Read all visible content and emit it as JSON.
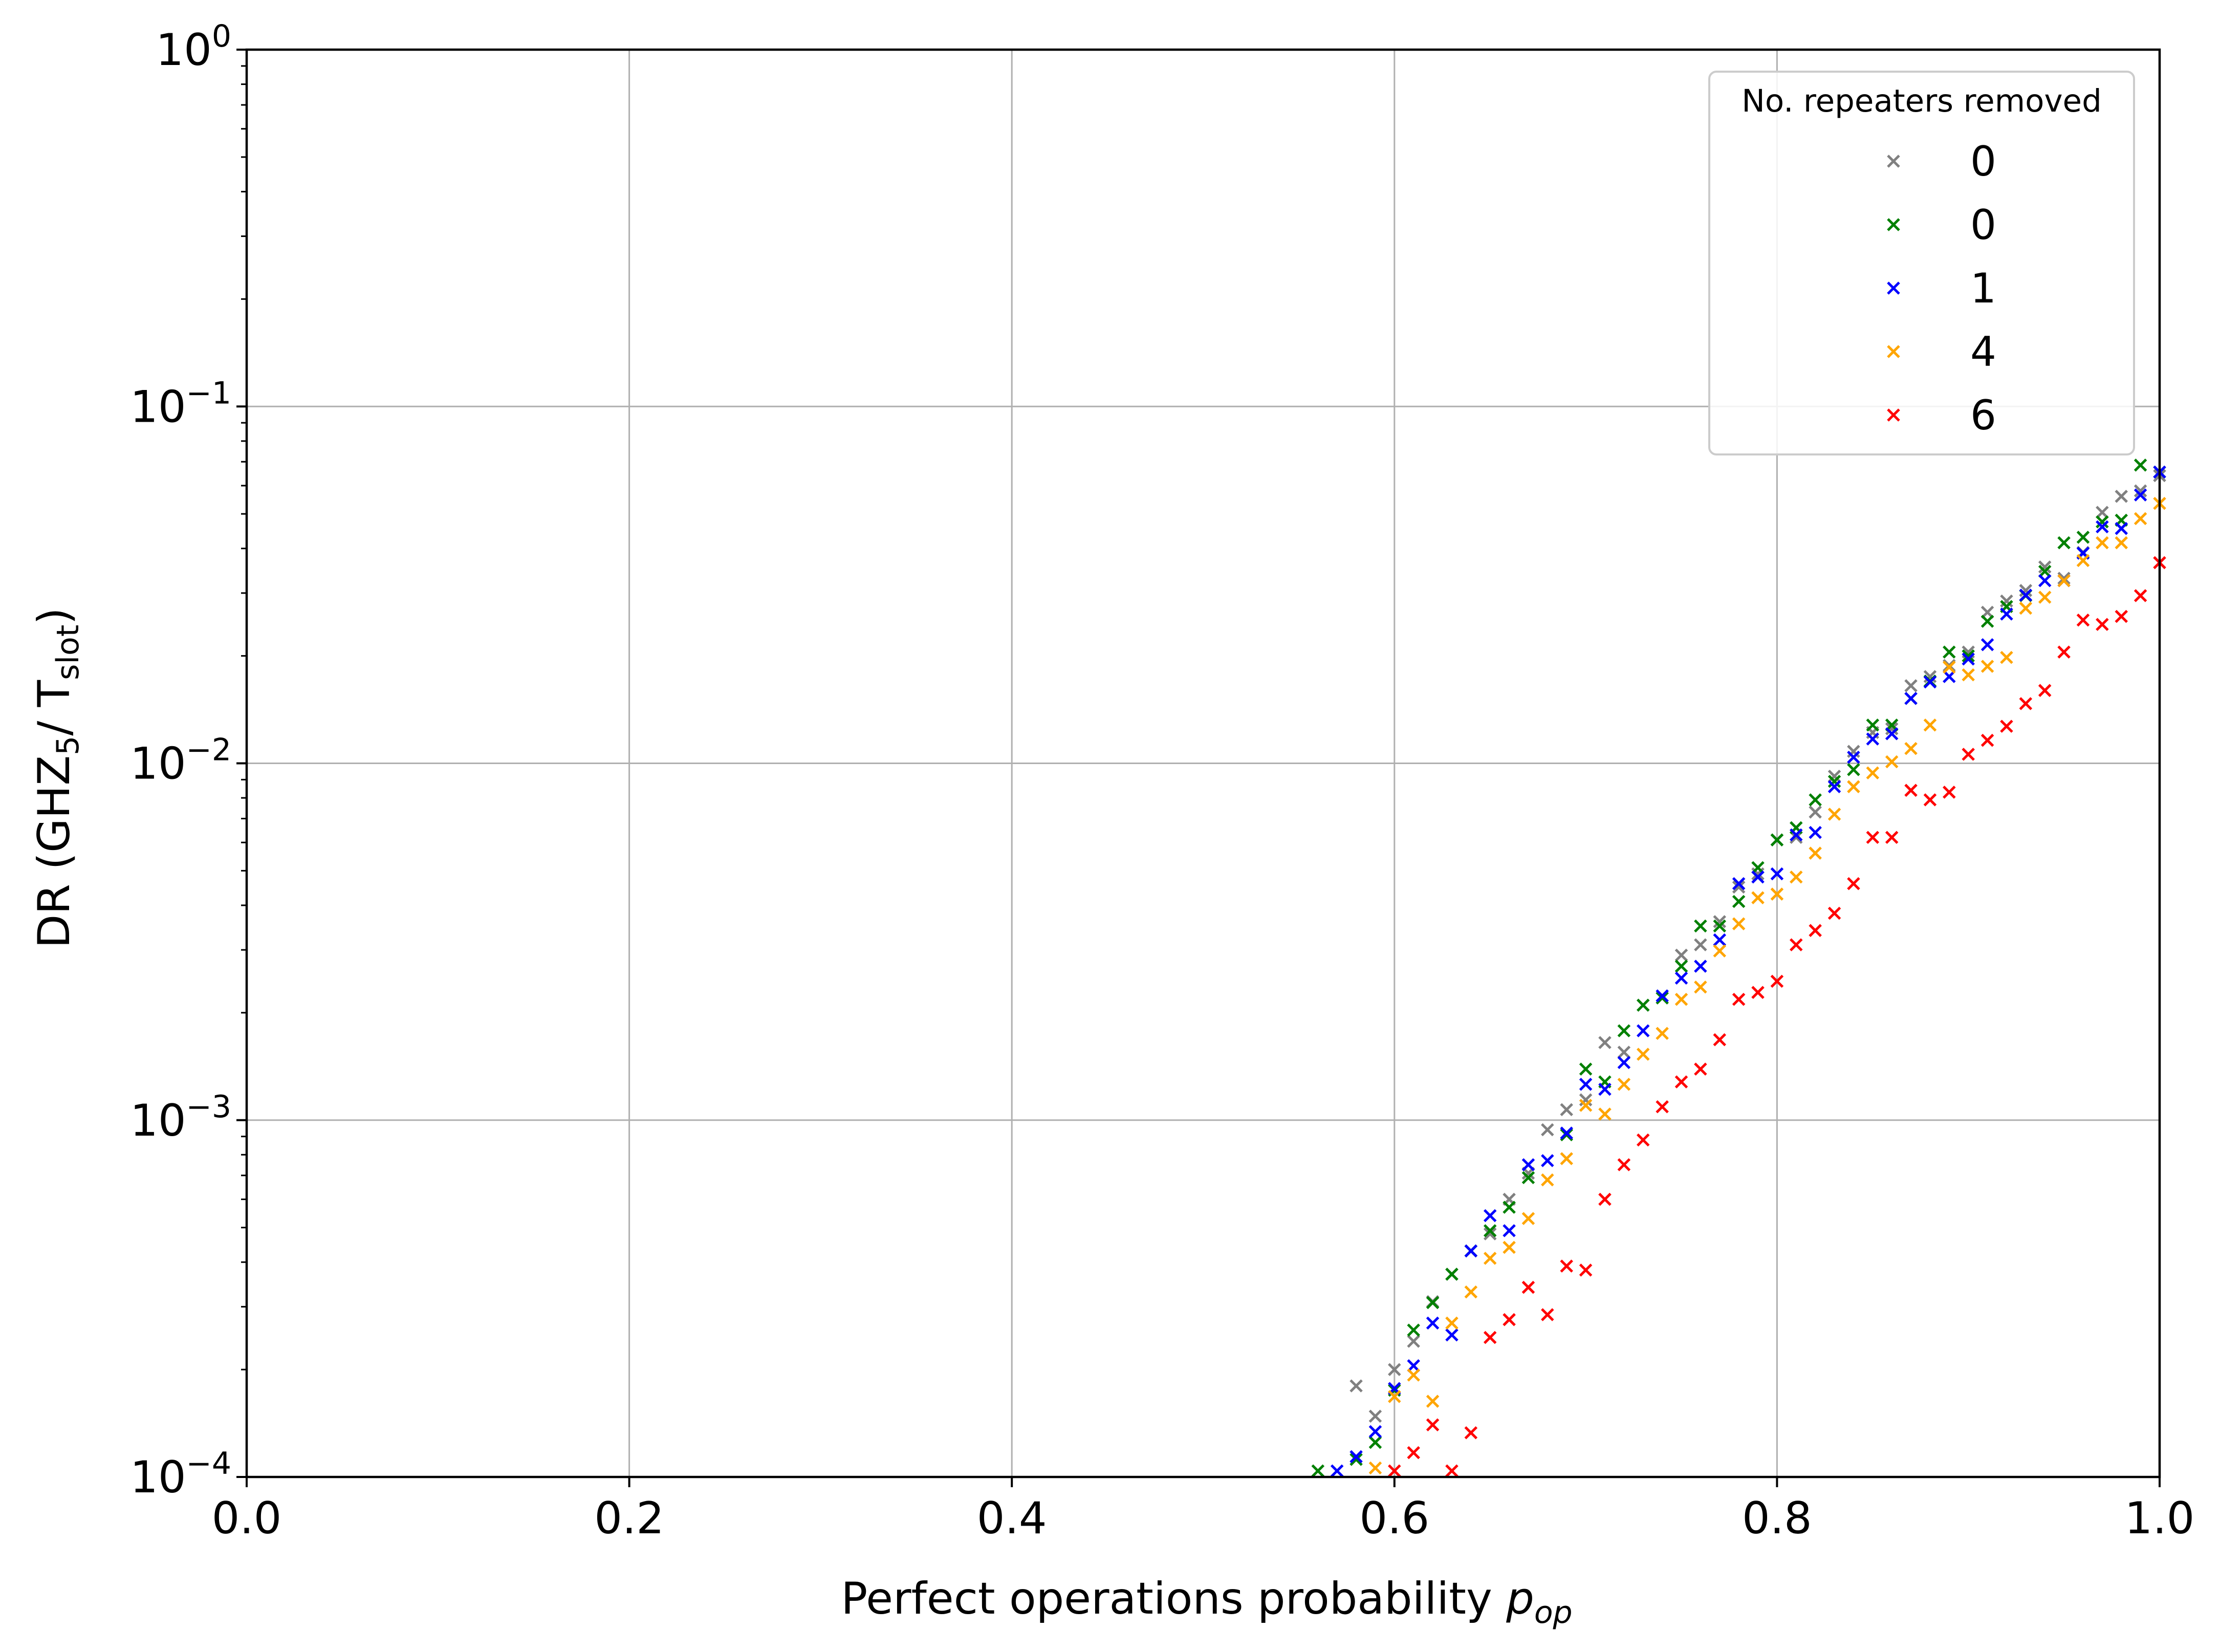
{
  "chart_data": {
    "type": "scatter",
    "marker": "x",
    "xlabel_main": "Perfect operations probability ",
    "xlabel_var": "p",
    "xlabel_var_sub": "op",
    "ylabel": {
      "p1": "DR (GHZ",
      "p1_sub": "5",
      "p2": "/ T",
      "p2_sub": "slot",
      "p3": ")"
    },
    "xlim": [
      0.0,
      1.0
    ],
    "ylim": [
      0.0001,
      1
    ],
    "yscale": "log",
    "grid": true,
    "x_ticks": [
      "0.0",
      "0.2",
      "0.4",
      "0.6",
      "0.8",
      "1.0"
    ],
    "y_ticks": [
      {
        "base": "10",
        "exp": "−4"
      },
      {
        "base": "10",
        "exp": "−3"
      },
      {
        "base": "10",
        "exp": "−2"
      },
      {
        "base": "10",
        "exp": "−1"
      },
      {
        "base": "10",
        "exp": "0"
      }
    ],
    "legend": {
      "title": "No. repeaters removed",
      "position": "top-right"
    },
    "series": [
      {
        "name": "0",
        "color": "#808080",
        "points": [
          [
            0.58,
            0.00018
          ],
          [
            0.59,
            0.000148
          ],
          [
            0.6,
            0.0002
          ],
          [
            0.61,
            0.00024
          ],
          [
            0.62,
            0.00031
          ],
          [
            0.63,
            0.00037
          ],
          [
            0.64,
            0.00043
          ],
          [
            0.65,
            0.00048
          ],
          [
            0.66,
            0.0006
          ],
          [
            0.67,
            0.00071
          ],
          [
            0.68,
            0.00094
          ],
          [
            0.69,
            0.00107
          ],
          [
            0.7,
            0.00114
          ],
          [
            0.71,
            0.00165
          ],
          [
            0.72,
            0.00155
          ],
          [
            0.73,
            0.0021
          ],
          [
            0.74,
            0.0022
          ],
          [
            0.75,
            0.0029
          ],
          [
            0.76,
            0.0031
          ],
          [
            0.77,
            0.0036
          ],
          [
            0.78,
            0.0045
          ],
          [
            0.79,
            0.0049
          ],
          [
            0.8,
            0.0061
          ],
          [
            0.81,
            0.0062
          ],
          [
            0.82,
            0.0073
          ],
          [
            0.83,
            0.0092
          ],
          [
            0.84,
            0.0108
          ],
          [
            0.85,
            0.0122
          ],
          [
            0.86,
            0.0125
          ],
          [
            0.87,
            0.0165
          ],
          [
            0.88,
            0.0175
          ],
          [
            0.89,
            0.0188
          ],
          [
            0.9,
            0.0205
          ],
          [
            0.91,
            0.0265
          ],
          [
            0.92,
            0.0285
          ],
          [
            0.93,
            0.0305
          ],
          [
            0.94,
            0.0355
          ],
          [
            0.95,
            0.033
          ],
          [
            0.96,
            0.039
          ],
          [
            0.97,
            0.0505
          ],
          [
            0.98,
            0.056
          ],
          [
            0.99,
            0.058
          ],
          [
            1.0,
            0.064
          ]
        ]
      },
      {
        "name": "0",
        "color": "#008000",
        "points": [
          [
            0.56,
            0.000104
          ],
          [
            0.58,
            0.000112
          ],
          [
            0.59,
            0.000125
          ],
          [
            0.6,
            0.000175
          ],
          [
            0.61,
            0.000258
          ],
          [
            0.62,
            0.000308
          ],
          [
            0.63,
            0.00037
          ],
          [
            0.64,
            0.00043
          ],
          [
            0.65,
            0.00049
          ],
          [
            0.66,
            0.00057
          ],
          [
            0.67,
            0.00069
          ],
          [
            0.69,
            0.00091
          ],
          [
            0.7,
            0.00139
          ],
          [
            0.71,
            0.00128
          ],
          [
            0.72,
            0.00178
          ],
          [
            0.73,
            0.0021
          ],
          [
            0.74,
            0.0022
          ],
          [
            0.75,
            0.0027
          ],
          [
            0.76,
            0.0035
          ],
          [
            0.77,
            0.0035
          ],
          [
            0.78,
            0.0041
          ],
          [
            0.79,
            0.0051
          ],
          [
            0.8,
            0.0061
          ],
          [
            0.81,
            0.0066
          ],
          [
            0.82,
            0.0079
          ],
          [
            0.83,
            0.0089
          ],
          [
            0.84,
            0.0096
          ],
          [
            0.85,
            0.0128
          ],
          [
            0.86,
            0.0128
          ],
          [
            0.87,
            0.0152
          ],
          [
            0.88,
            0.017
          ],
          [
            0.89,
            0.0205
          ],
          [
            0.9,
            0.02
          ],
          [
            0.91,
            0.025
          ],
          [
            0.92,
            0.0275
          ],
          [
            0.93,
            0.0295
          ],
          [
            0.94,
            0.0345
          ],
          [
            0.95,
            0.0415
          ],
          [
            0.96,
            0.043
          ],
          [
            0.97,
            0.0475
          ],
          [
            0.98,
            0.048
          ],
          [
            0.99,
            0.0685
          ],
          [
            1.0,
            0.0655
          ]
        ]
      },
      {
        "name": "1",
        "color": "#0000ff",
        "points": [
          [
            0.57,
            0.000104
          ],
          [
            0.58,
            0.000114
          ],
          [
            0.59,
            0.000134
          ],
          [
            0.6,
            0.000177
          ],
          [
            0.61,
            0.000205
          ],
          [
            0.62,
            0.00027
          ],
          [
            0.63,
            0.00025
          ],
          [
            0.64,
            0.00043
          ],
          [
            0.65,
            0.00054
          ],
          [
            0.66,
            0.00049
          ],
          [
            0.67,
            0.00075
          ],
          [
            0.68,
            0.00077
          ],
          [
            0.69,
            0.00092
          ],
          [
            0.7,
            0.00126
          ],
          [
            0.71,
            0.00122
          ],
          [
            0.72,
            0.00145
          ],
          [
            0.73,
            0.00178
          ],
          [
            0.74,
            0.00223
          ],
          [
            0.75,
            0.0025
          ],
          [
            0.76,
            0.0027
          ],
          [
            0.77,
            0.0032
          ],
          [
            0.78,
            0.0046
          ],
          [
            0.79,
            0.0048
          ],
          [
            0.8,
            0.0049
          ],
          [
            0.81,
            0.0063
          ],
          [
            0.82,
            0.0064
          ],
          [
            0.83,
            0.0086
          ],
          [
            0.84,
            0.0104
          ],
          [
            0.85,
            0.0117
          ],
          [
            0.86,
            0.0121
          ],
          [
            0.87,
            0.0152
          ],
          [
            0.88,
            0.0169
          ],
          [
            0.89,
            0.0175
          ],
          [
            0.9,
            0.0196
          ],
          [
            0.91,
            0.0215
          ],
          [
            0.92,
            0.0262
          ],
          [
            0.93,
            0.0296
          ],
          [
            0.94,
            0.0325
          ],
          [
            0.95,
            0.0325
          ],
          [
            0.96,
            0.0388
          ],
          [
            0.97,
            0.046
          ],
          [
            0.98,
            0.0455
          ],
          [
            0.99,
            0.0565
          ],
          [
            1.0,
            0.0655
          ]
        ]
      },
      {
        "name": "4",
        "color": "#ffa500",
        "points": [
          [
            0.59,
            0.000106
          ],
          [
            0.6,
            0.000168
          ],
          [
            0.61,
            0.000193
          ],
          [
            0.62,
            0.000163
          ],
          [
            0.63,
            0.00027
          ],
          [
            0.64,
            0.00033
          ],
          [
            0.65,
            0.00041
          ],
          [
            0.66,
            0.00044
          ],
          [
            0.67,
            0.00053
          ],
          [
            0.68,
            0.00068
          ],
          [
            0.69,
            0.00078
          ],
          [
            0.7,
            0.0011
          ],
          [
            0.71,
            0.00104
          ],
          [
            0.72,
            0.00126
          ],
          [
            0.73,
            0.00153
          ],
          [
            0.74,
            0.00175
          ],
          [
            0.75,
            0.00218
          ],
          [
            0.76,
            0.00236
          ],
          [
            0.77,
            0.00298
          ],
          [
            0.78,
            0.00355
          ],
          [
            0.79,
            0.0042
          ],
          [
            0.8,
            0.0043
          ],
          [
            0.81,
            0.0048
          ],
          [
            0.82,
            0.0056
          ],
          [
            0.83,
            0.0072
          ],
          [
            0.84,
            0.0086
          ],
          [
            0.85,
            0.0094
          ],
          [
            0.86,
            0.0101
          ],
          [
            0.87,
            0.011
          ],
          [
            0.88,
            0.0128
          ],
          [
            0.89,
            0.0186
          ],
          [
            0.9,
            0.0177
          ],
          [
            0.91,
            0.0187
          ],
          [
            0.92,
            0.0198
          ],
          [
            0.93,
            0.0272
          ],
          [
            0.94,
            0.0292
          ],
          [
            0.95,
            0.0325
          ],
          [
            0.96,
            0.037
          ],
          [
            0.97,
            0.0415
          ],
          [
            0.98,
            0.0415
          ],
          [
            0.99,
            0.0485
          ],
          [
            1.0,
            0.0535
          ]
        ]
      },
      {
        "name": "6",
        "color": "#ff0000",
        "points": [
          [
            0.6,
            0.000104
          ],
          [
            0.61,
            0.000117
          ],
          [
            0.62,
            0.00014
          ],
          [
            0.63,
            0.000104
          ],
          [
            0.64,
            0.000133
          ],
          [
            0.65,
            0.000246
          ],
          [
            0.66,
            0.000276
          ],
          [
            0.67,
            0.00034
          ],
          [
            0.68,
            0.000285
          ],
          [
            0.69,
            0.00039
          ],
          [
            0.7,
            0.00038
          ],
          [
            0.71,
            0.0006
          ],
          [
            0.72,
            0.00075
          ],
          [
            0.73,
            0.00088
          ],
          [
            0.74,
            0.00109
          ],
          [
            0.75,
            0.00128
          ],
          [
            0.76,
            0.00139
          ],
          [
            0.77,
            0.00168
          ],
          [
            0.78,
            0.00218
          ],
          [
            0.79,
            0.00228
          ],
          [
            0.8,
            0.00245
          ],
          [
            0.81,
            0.0031
          ],
          [
            0.82,
            0.0034
          ],
          [
            0.83,
            0.0038
          ],
          [
            0.84,
            0.0046
          ],
          [
            0.85,
            0.0062
          ],
          [
            0.86,
            0.0062
          ],
          [
            0.87,
            0.0084
          ],
          [
            0.88,
            0.0079
          ],
          [
            0.89,
            0.0083
          ],
          [
            0.9,
            0.0106
          ],
          [
            0.91,
            0.0116
          ],
          [
            0.92,
            0.0127
          ],
          [
            0.93,
            0.0147
          ],
          [
            0.94,
            0.016
          ],
          [
            0.95,
            0.0205
          ],
          [
            0.96,
            0.0252
          ],
          [
            0.97,
            0.0245
          ],
          [
            0.98,
            0.0258
          ],
          [
            0.99,
            0.0295
          ],
          [
            1.0,
            0.0365
          ]
        ]
      }
    ]
  }
}
